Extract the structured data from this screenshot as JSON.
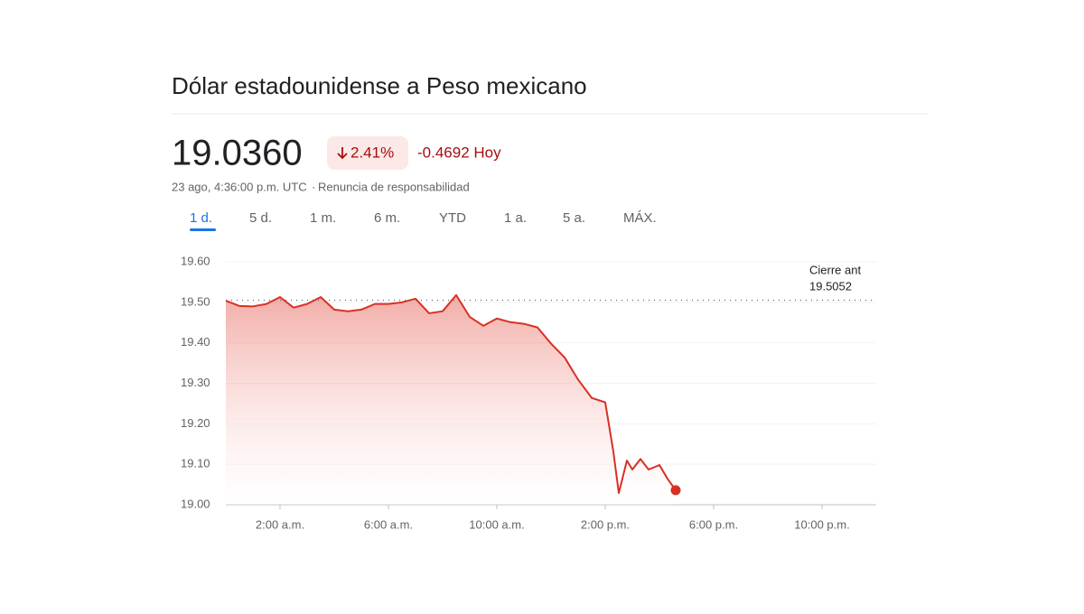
{
  "header": {
    "title": "Dólar estadounidense a Peso mexicano",
    "price": "19.0360",
    "change_percent": "2.41%",
    "change": "-0.4692 Hoy",
    "timestamp": "23 ago, 4:36:00 p.m. UTC",
    "disclaimer": "Renuncia de responsabilidad"
  },
  "tabs": [
    "1 d.",
    "5 d.",
    "1 m.",
    "6 m.",
    "YTD",
    "1 a.",
    "5 a.",
    "MÁX."
  ],
  "chart_data": {
    "type": "line",
    "x": [
      0,
      0.5,
      1,
      1.5,
      2,
      2.5,
      3,
      3.5,
      4,
      4.5,
      5,
      5.5,
      6,
      6.5,
      7,
      7.5,
      8,
      8.5,
      9,
      9.5,
      10,
      10.5,
      11,
      11.5,
      12,
      12.5,
      13,
      13.5,
      14,
      14.3,
      14.5,
      14.8,
      15,
      15.3,
      15.6,
      16,
      16.3,
      16.6
    ],
    "values": [
      19.504,
      19.491,
      19.49,
      19.496,
      19.513,
      19.487,
      19.496,
      19.513,
      19.482,
      19.478,
      19.482,
      19.496,
      19.496,
      19.5,
      19.509,
      19.473,
      19.478,
      19.518,
      19.464,
      19.442,
      19.46,
      19.451,
      19.447,
      19.438,
      19.398,
      19.364,
      19.309,
      19.264,
      19.253,
      19.131,
      19.029,
      19.109,
      19.087,
      19.113,
      19.087,
      19.098,
      19.064,
      19.036
    ],
    "color": "#d93025",
    "xlim": [
      0,
      24
    ],
    "xticks": [
      {
        "value": 2,
        "label": "2:00 a.m."
      },
      {
        "value": 6,
        "label": "6:00 a.m."
      },
      {
        "value": 10,
        "label": "10:00 a.m."
      },
      {
        "value": 14,
        "label": "2:00 p.m."
      },
      {
        "value": 18,
        "label": "6:00 p.m."
      },
      {
        "value": 22,
        "label": "10:00 p.m."
      }
    ],
    "ylim": [
      19.0,
      19.6
    ],
    "yticks": [
      {
        "value": 19.0,
        "label": "19.00"
      },
      {
        "value": 19.1,
        "label": "19.10"
      },
      {
        "value": 19.2,
        "label": "19.20"
      },
      {
        "value": 19.3,
        "label": "19.30"
      },
      {
        "value": 19.4,
        "label": "19.40"
      },
      {
        "value": 19.5,
        "label": "19.50"
      },
      {
        "value": 19.6,
        "label": "19.60"
      }
    ],
    "grid": true,
    "previous_close": {
      "label": "Cierre ant",
      "value": 19.5052
    }
  }
}
